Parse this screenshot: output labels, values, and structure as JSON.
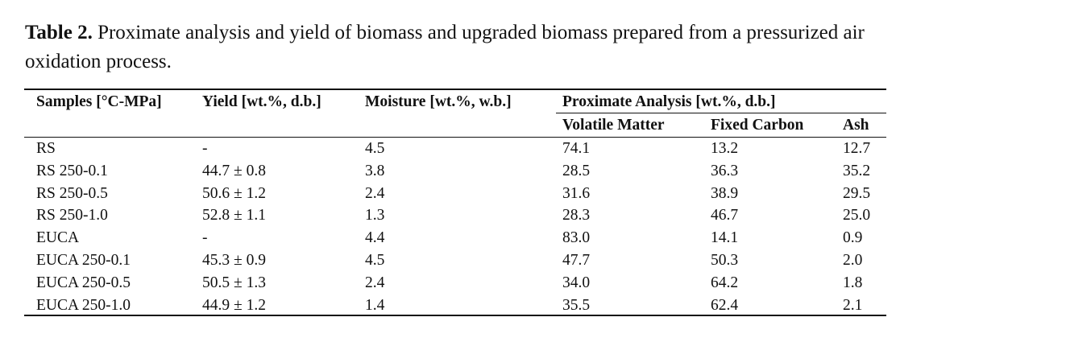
{
  "caption": {
    "label": "Table 2.",
    "lines": [
      "Proximate analysis and yield of biomass and upgraded biomass prepared from a pressurized air",
      "oxidation process."
    ]
  },
  "table": {
    "header": [
      "Samples [°C-MPa]",
      "Yield [wt.%, d.b.]",
      "Moisture [wt.%, w.b.]",
      "Proximate Analysis [wt.%, d.b.]"
    ],
    "subheader": [
      "Volatile Matter",
      "Fixed Carbon",
      "Ash"
    ],
    "rows": [
      [
        "RS",
        "-",
        "4.5",
        "74.1",
        "13.2",
        "12.7"
      ],
      [
        "RS 250-0.1",
        "44.7 ± 0.8",
        "3.8",
        "28.5",
        "36.3",
        "35.2"
      ],
      [
        "RS 250-0.5",
        "50.6 ± 1.2",
        "2.4",
        "31.6",
        "38.9",
        "29.5"
      ],
      [
        "RS 250-1.0",
        "52.8 ± 1.1",
        "1.3",
        "28.3",
        "46.7",
        "25.0"
      ],
      [
        "EUCA",
        "-",
        "4.4",
        "83.0",
        "14.1",
        "0.9"
      ],
      [
        "EUCA 250-0.1",
        "45.3 ± 0.9",
        "4.5",
        "47.7",
        "50.3",
        "2.0"
      ],
      [
        "EUCA 250-0.5",
        "50.5 ± 1.3",
        "2.4",
        "34.0",
        "64.2",
        "1.8"
      ],
      [
        "EUCA 250-1.0",
        "44.9 ± 1.2",
        "1.4",
        "35.5",
        "62.4",
        "2.1"
      ]
    ]
  }
}
